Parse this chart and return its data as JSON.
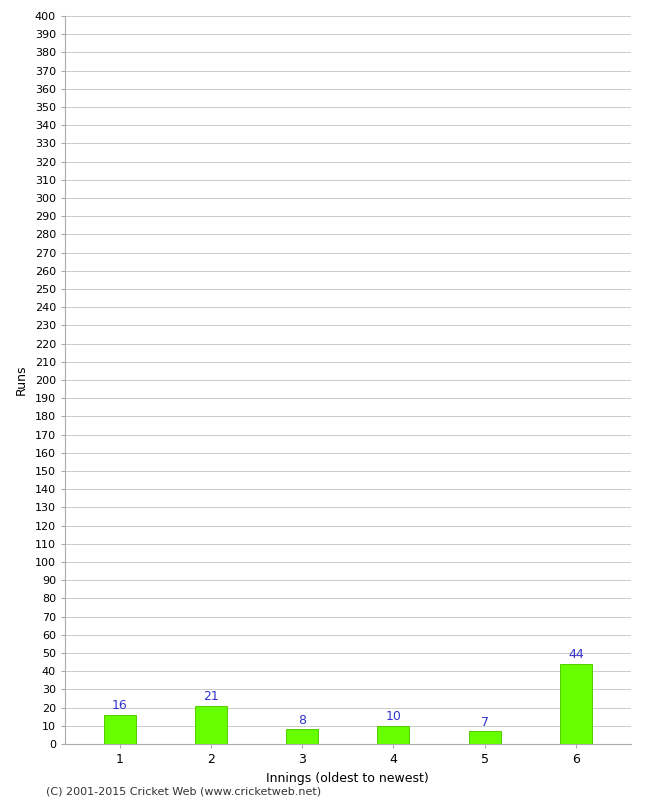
{
  "categories": [
    "1",
    "2",
    "3",
    "4",
    "5",
    "6"
  ],
  "values": [
    16,
    21,
    8,
    10,
    7,
    44
  ],
  "bar_color": "#66ff00",
  "bar_edge_color": "#55cc00",
  "xlabel": "Innings (oldest to newest)",
  "ylabel": "Runs",
  "ylim": [
    0,
    400
  ],
  "ytick_step": 10,
  "background_color": "#ffffff",
  "grid_color": "#cccccc",
  "label_color": "#3333cc",
  "footer": "(C) 2001-2015 Cricket Web (www.cricketweb.net)"
}
